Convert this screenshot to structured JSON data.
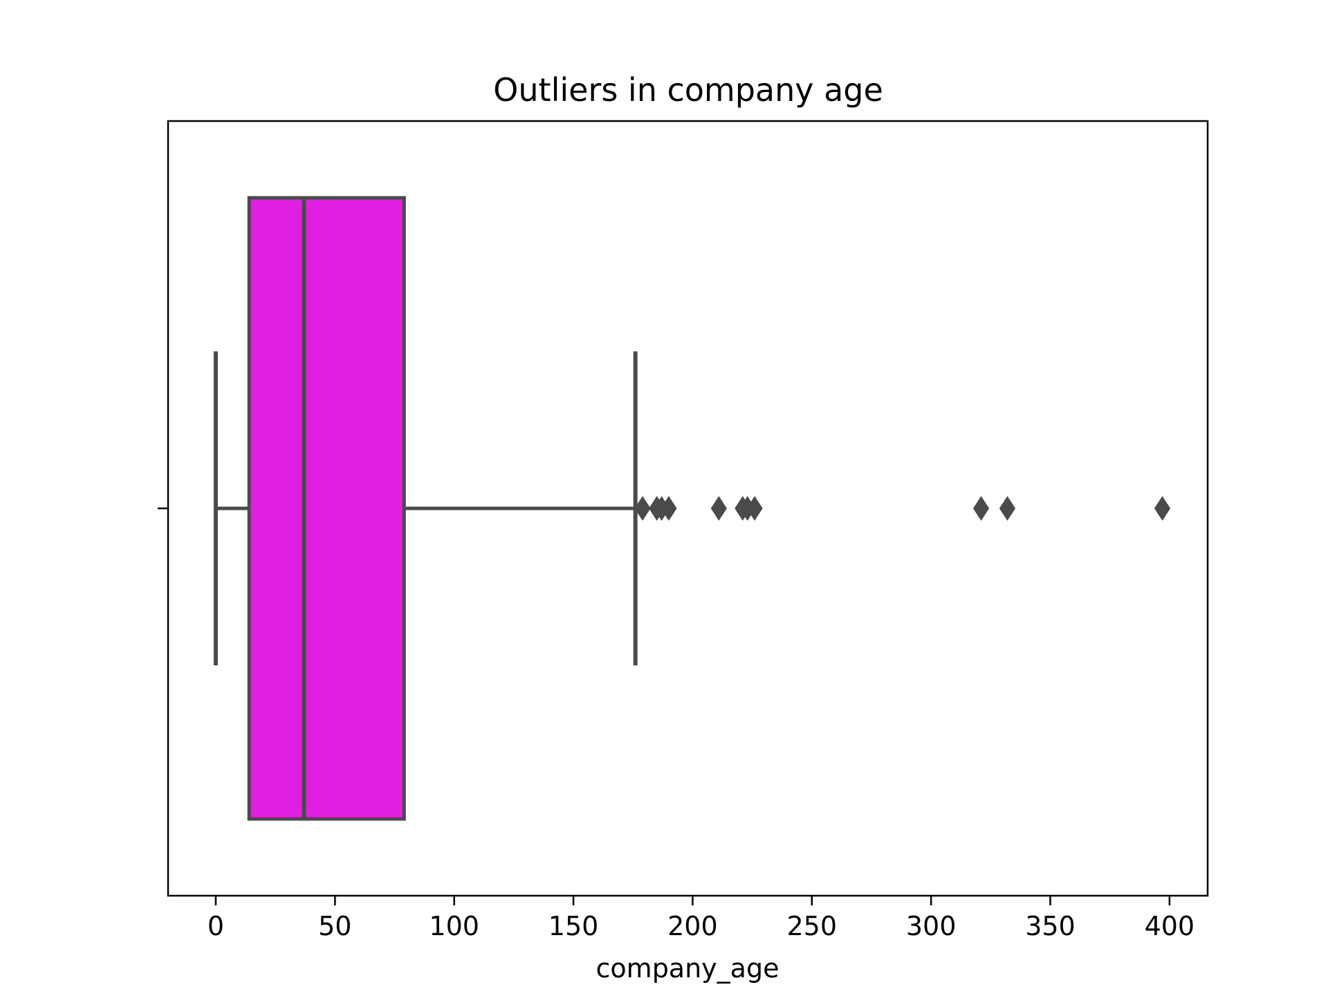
{
  "chart_data": {
    "type": "boxplot",
    "orientation": "horizontal",
    "title": "Outliers in company age",
    "xlabel": "company_age",
    "ylabel": "",
    "xlim": [
      -20,
      416
    ],
    "xticks": [
      0,
      50,
      100,
      150,
      200,
      250,
      300,
      350,
      400
    ],
    "xtick_labels": [
      "0",
      "50",
      "100",
      "150",
      "200",
      "250",
      "300",
      "350",
      "400"
    ],
    "grid": false,
    "box": {
      "whisker_low": 0,
      "q1": 14,
      "median": 37,
      "q3": 79,
      "whisker_high": 176,
      "outliers": [
        179,
        185,
        187,
        190,
        211,
        221,
        223,
        226,
        321,
        332,
        397
      ]
    },
    "colors": {
      "box_fill": "#e020e0",
      "line": "#4a4a4a",
      "outlier": "#4a4a4a"
    }
  }
}
